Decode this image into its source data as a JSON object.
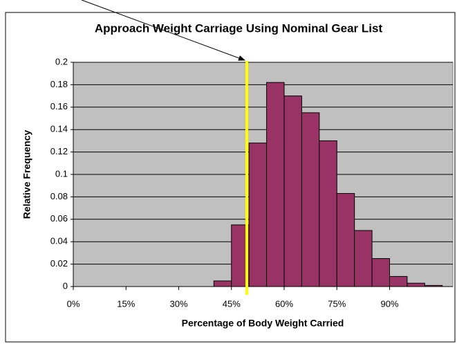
{
  "chart_data": {
    "type": "histogram",
    "title": "Approach Weight Carriage Using Nominal Gear List",
    "xlabel": "Percentage of Body Weight Carried",
    "ylabel": "Relative Frequency",
    "bins": [
      40,
      45,
      50,
      55,
      60,
      65,
      70,
      75,
      80,
      85,
      90,
      95,
      100,
      105
    ],
    "values": [
      0.005,
      0.055,
      0.128,
      0.182,
      0.17,
      0.155,
      0.13,
      0.083,
      0.05,
      0.025,
      0.009,
      0.003,
      0.001
    ],
    "color": "#993366",
    "xlim": [
      0,
      108
    ],
    "xticks": [
      {
        "value": 0,
        "label": "0%"
      },
      {
        "value": 15,
        "label": "15%"
      },
      {
        "value": 30,
        "label": "30%"
      },
      {
        "value": 45,
        "label": "45%"
      },
      {
        "value": 60,
        "label": "60%"
      },
      {
        "value": 75,
        "label": "75%"
      },
      {
        "value": 90,
        "label": "90%"
      }
    ],
    "ylim": [
      0,
      0.2
    ],
    "yticks": [
      0,
      0.02,
      0.04,
      0.06,
      0.08,
      0.1,
      0.12,
      0.14,
      0.16,
      0.18,
      0.2
    ],
    "grid": true
  }
}
